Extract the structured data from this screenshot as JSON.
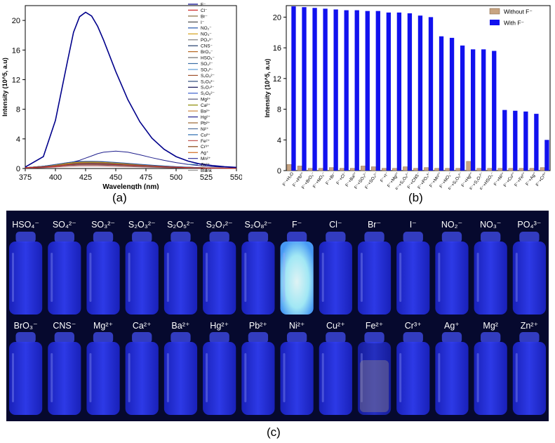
{
  "captions": {
    "a": "(a)",
    "b": "(b)",
    "c": "(c)"
  },
  "colors": {
    "with_f": "#1111ee",
    "without_f": "#c8a482",
    "spectrum_main": "#00008b",
    "photo_bg": "#06092e",
    "vial_glow": "#2f3cf0"
  },
  "chart_data": [
    {
      "type": "line",
      "panel": "a",
      "xlabel": "Wavelength (nm)",
      "ylabel": "Intensity (10^5, a.u)",
      "xlim": [
        375,
        550
      ],
      "ylim": [
        0,
        22
      ],
      "xticks": [
        "375",
        "400",
        "425",
        "450",
        "475",
        "500",
        "525",
        "550"
      ],
      "yticks": [
        "0",
        "4",
        "8",
        "12",
        "16",
        "20"
      ],
      "legend_position": "top-right",
      "x": [
        375,
        390,
        400,
        410,
        415,
        420,
        425,
        430,
        435,
        440,
        450,
        460,
        470,
        480,
        490,
        500,
        510,
        520,
        530,
        540,
        550
      ],
      "series": [
        {
          "name": "F⁻",
          "color": "#00008b",
          "values": [
            0.2,
            1.6,
            6.5,
            14.5,
            18.4,
            20.5,
            21.1,
            20.6,
            19.2,
            17.3,
            13.1,
            9.3,
            6.3,
            4.1,
            2.6,
            1.6,
            1.0,
            0.6,
            0.4,
            0.25,
            0.15
          ]
        },
        {
          "name": "Cl⁻",
          "color": "#cc2222",
          "values": [
            0.1,
            0.2,
            0.3,
            0.5,
            0.55,
            0.6,
            0.6,
            0.6,
            0.6,
            0.58,
            0.52,
            0.45,
            0.38,
            0.3,
            0.22,
            0.16,
            0.12,
            0.08,
            0.06,
            0.04,
            0.03
          ]
        },
        {
          "name": "Br⁻",
          "color": "#8a6d3b",
          "values": [
            0.1,
            0.25,
            0.4,
            0.6,
            0.68,
            0.72,
            0.75,
            0.76,
            0.75,
            0.72,
            0.65,
            0.55,
            0.45,
            0.35,
            0.26,
            0.19,
            0.13,
            0.09,
            0.06,
            0.04,
            0.03
          ]
        },
        {
          "name": "I⁻",
          "color": "#4a4a4a",
          "values": [
            0.1,
            0.2,
            0.35,
            0.5,
            0.55,
            0.6,
            0.62,
            0.62,
            0.6,
            0.58,
            0.52,
            0.45,
            0.37,
            0.29,
            0.21,
            0.15,
            0.11,
            0.08,
            0.05,
            0.04,
            0.03
          ]
        },
        {
          "name": "NO₂⁻",
          "color": "#2255aa",
          "values": [
            0.1,
            0.3,
            0.55,
            0.8,
            0.9,
            0.95,
            0.98,
            0.98,
            0.96,
            0.92,
            0.82,
            0.7,
            0.57,
            0.45,
            0.34,
            0.25,
            0.18,
            0.12,
            0.08,
            0.05,
            0.04
          ]
        },
        {
          "name": "NO₃⁻",
          "color": "#d4a017",
          "values": [
            0.1,
            0.3,
            0.5,
            0.7,
            0.78,
            0.82,
            0.85,
            0.86,
            0.85,
            0.82,
            0.74,
            0.63,
            0.51,
            0.4,
            0.3,
            0.22,
            0.16,
            0.11,
            0.07,
            0.05,
            0.03
          ]
        },
        {
          "name": "PO₄³⁻",
          "color": "#7f7f7f",
          "values": [
            0.1,
            0.2,
            0.3,
            0.4,
            0.44,
            0.47,
            0.48,
            0.48,
            0.47,
            0.45,
            0.4,
            0.34,
            0.28,
            0.22,
            0.16,
            0.12,
            0.09,
            0.06,
            0.04,
            0.03,
            0.02
          ]
        },
        {
          "name": "CNS⁻",
          "color": "#1f3b6b",
          "values": [
            0.1,
            0.2,
            0.35,
            0.5,
            0.56,
            0.6,
            0.62,
            0.63,
            0.62,
            0.6,
            0.54,
            0.46,
            0.38,
            0.3,
            0.22,
            0.16,
            0.12,
            0.08,
            0.05,
            0.04,
            0.03
          ]
        },
        {
          "name": "BrO₃⁻",
          "color": "#b5651d",
          "values": [
            0.1,
            0.25,
            0.45,
            0.65,
            0.72,
            0.78,
            0.8,
            0.8,
            0.79,
            0.76,
            0.68,
            0.58,
            0.47,
            0.37,
            0.28,
            0.2,
            0.14,
            0.1,
            0.07,
            0.05,
            0.03
          ]
        },
        {
          "name": "HSO₄⁻",
          "color": "#6b6b6b",
          "values": [
            0.1,
            0.2,
            0.3,
            0.42,
            0.46,
            0.5,
            0.52,
            0.52,
            0.51,
            0.49,
            0.44,
            0.37,
            0.3,
            0.24,
            0.18,
            0.13,
            0.09,
            0.06,
            0.04,
            0.03,
            0.02
          ]
        },
        {
          "name": "SO₃²⁻",
          "color": "#3a6ea5",
          "values": [
            0.1,
            0.25,
            0.4,
            0.6,
            0.66,
            0.7,
            0.72,
            0.72,
            0.71,
            0.68,
            0.61,
            0.52,
            0.42,
            0.33,
            0.25,
            0.18,
            0.13,
            0.09,
            0.06,
            0.04,
            0.03
          ]
        },
        {
          "name": "SO₄²⁻",
          "color": "#5b9bd5",
          "values": [
            0.1,
            0.2,
            0.35,
            0.5,
            0.55,
            0.58,
            0.6,
            0.6,
            0.59,
            0.57,
            0.51,
            0.43,
            0.35,
            0.28,
            0.21,
            0.15,
            0.11,
            0.07,
            0.05,
            0.03,
            0.02
          ]
        },
        {
          "name": "S₂O₃²⁻",
          "color": "#a0522d",
          "values": [
            0.1,
            0.28,
            0.48,
            0.68,
            0.76,
            0.82,
            0.84,
            0.84,
            0.83,
            0.8,
            0.71,
            0.6,
            0.49,
            0.38,
            0.29,
            0.21,
            0.15,
            0.1,
            0.07,
            0.05,
            0.03
          ]
        },
        {
          "name": "S₂O₅²⁻",
          "color": "#2e4a7d",
          "values": [
            0.1,
            0.22,
            0.38,
            0.55,
            0.6,
            0.64,
            0.66,
            0.66,
            0.65,
            0.63,
            0.56,
            0.48,
            0.39,
            0.31,
            0.23,
            0.17,
            0.12,
            0.08,
            0.05,
            0.04,
            0.03
          ]
        },
        {
          "name": "S₂O₇²⁻",
          "color": "#111155",
          "values": [
            0.1,
            0.3,
            0.5,
            0.72,
            0.8,
            0.85,
            0.88,
            0.88,
            0.87,
            0.84,
            0.75,
            0.64,
            0.52,
            0.41,
            0.31,
            0.23,
            0.16,
            0.11,
            0.07,
            0.05,
            0.03
          ]
        },
        {
          "name": "S₂O₈²⁻",
          "color": "#3a5fcd",
          "values": [
            0.1,
            0.2,
            0.33,
            0.47,
            0.52,
            0.55,
            0.57,
            0.57,
            0.56,
            0.54,
            0.48,
            0.41,
            0.33,
            0.26,
            0.2,
            0.14,
            0.1,
            0.07,
            0.05,
            0.03,
            0.02
          ]
        },
        {
          "name": "Mg²⁺",
          "color": "#555577",
          "values": [
            0.1,
            0.25,
            0.42,
            0.6,
            0.66,
            0.7,
            0.72,
            0.73,
            0.72,
            0.69,
            0.62,
            0.53,
            0.43,
            0.34,
            0.25,
            0.18,
            0.13,
            0.09,
            0.06,
            0.04,
            0.03
          ]
        },
        {
          "name": "Ca²⁺",
          "color": "#8b8b00",
          "values": [
            0.1,
            0.2,
            0.35,
            0.5,
            0.55,
            0.58,
            0.6,
            0.6,
            0.59,
            0.57,
            0.51,
            0.43,
            0.35,
            0.28,
            0.21,
            0.15,
            0.11,
            0.07,
            0.05,
            0.03,
            0.02
          ]
        },
        {
          "name": "Ba²⁺",
          "color": "#cd853f",
          "values": [
            0.1,
            0.3,
            0.55,
            0.78,
            0.86,
            0.92,
            0.95,
            0.95,
            0.94,
            0.9,
            0.8,
            0.68,
            0.55,
            0.43,
            0.33,
            0.24,
            0.17,
            0.12,
            0.08,
            0.05,
            0.04
          ]
        },
        {
          "name": "Hg²⁺",
          "color": "#1e1e8c",
          "values": [
            0.1,
            0.3,
            0.5,
            0.75,
            0.9,
            1.1,
            1.4,
            1.7,
            2.0,
            2.2,
            2.35,
            2.2,
            1.85,
            1.45,
            1.1,
            0.8,
            0.55,
            0.38,
            0.26,
            0.18,
            0.12
          ]
        },
        {
          "name": "Pb²⁺",
          "color": "#996633",
          "values": [
            0.1,
            0.22,
            0.4,
            0.58,
            0.64,
            0.68,
            0.7,
            0.7,
            0.69,
            0.66,
            0.59,
            0.5,
            0.41,
            0.32,
            0.24,
            0.17,
            0.12,
            0.08,
            0.06,
            0.04,
            0.03
          ]
        },
        {
          "name": "Ni²⁺",
          "color": "#4f6d9a",
          "values": [
            0.1,
            0.2,
            0.32,
            0.45,
            0.5,
            0.53,
            0.55,
            0.55,
            0.54,
            0.52,
            0.46,
            0.39,
            0.32,
            0.25,
            0.19,
            0.14,
            0.1,
            0.07,
            0.05,
            0.03,
            0.02
          ]
        },
        {
          "name": "Cu²⁺",
          "color": "#2b6cb0",
          "values": [
            0.1,
            0.18,
            0.3,
            0.42,
            0.46,
            0.49,
            0.5,
            0.5,
            0.49,
            0.47,
            0.42,
            0.36,
            0.29,
            0.23,
            0.17,
            0.12,
            0.09,
            0.06,
            0.04,
            0.03,
            0.02
          ]
        },
        {
          "name": "Fe²⁺",
          "color": "#c0504d",
          "values": [
            0.05,
            0.12,
            0.2,
            0.3,
            0.33,
            0.35,
            0.36,
            0.36,
            0.35,
            0.34,
            0.3,
            0.26,
            0.21,
            0.16,
            0.12,
            0.09,
            0.06,
            0.04,
            0.03,
            0.02,
            0.01
          ]
        },
        {
          "name": "Cr³⁺",
          "color": "#8b4513",
          "values": [
            0.1,
            0.25,
            0.45,
            0.64,
            0.71,
            0.76,
            0.78,
            0.78,
            0.77,
            0.74,
            0.66,
            0.56,
            0.46,
            0.36,
            0.27,
            0.19,
            0.14,
            0.09,
            0.06,
            0.04,
            0.03
          ]
        },
        {
          "name": "Ag⁺",
          "color": "#d2691e",
          "values": [
            0.1,
            0.28,
            0.5,
            0.7,
            0.78,
            0.83,
            0.86,
            0.86,
            0.85,
            0.82,
            0.73,
            0.62,
            0.5,
            0.39,
            0.3,
            0.22,
            0.15,
            0.1,
            0.07,
            0.05,
            0.03
          ]
        },
        {
          "name": "Mn²⁺",
          "color": "#333399",
          "values": [
            0.1,
            0.22,
            0.37,
            0.53,
            0.58,
            0.62,
            0.64,
            0.64,
            0.63,
            0.61,
            0.54,
            0.46,
            0.38,
            0.3,
            0.22,
            0.16,
            0.11,
            0.08,
            0.05,
            0.04,
            0.03
          ]
        },
        {
          "name": "Zn²⁺",
          "color": "#4682b4",
          "values": [
            0.1,
            0.2,
            0.33,
            0.48,
            0.53,
            0.56,
            0.58,
            0.58,
            0.57,
            0.55,
            0.49,
            0.42,
            0.34,
            0.27,
            0.2,
            0.14,
            0.1,
            0.07,
            0.05,
            0.03,
            0.02
          ]
        },
        {
          "name": "Blank",
          "color": "#999999",
          "values": [
            0.1,
            0.18,
            0.28,
            0.4,
            0.44,
            0.47,
            0.48,
            0.48,
            0.47,
            0.45,
            0.4,
            0.34,
            0.28,
            0.22,
            0.16,
            0.12,
            0.08,
            0.06,
            0.04,
            0.03,
            0.02
          ]
        }
      ],
      "legend": [
        "F⁻",
        "Cl⁻",
        "Br⁻",
        "I⁻",
        "NO₂⁻",
        "NO₃⁻",
        "PO₄³⁻",
        "CNS⁻",
        "BrO₃⁻",
        "HSO₄⁻",
        "SO₃²⁻",
        "SO₄²⁻",
        "S₂O₃²⁻",
        "S₂O₅²⁻",
        "S₂O₇²⁻",
        "S₂O₈²⁻",
        "Mg²⁺",
        "Ca²⁺",
        "Ba²⁺",
        "Hg²⁺",
        "Pb²⁺",
        "Ni²⁺",
        "Cu²⁺",
        "Fe²⁺",
        "Cr³⁺",
        "Ag⁺",
        "Mn²⁺",
        "Zn²⁺",
        "Blank"
      ]
    },
    {
      "type": "bar",
      "panel": "b",
      "xlabel": "",
      "ylabel": "Intensity (10^5, a.u)",
      "ylim": [
        0,
        21.5
      ],
      "yticks": [
        "0",
        "4",
        "8",
        "12",
        "16",
        "20"
      ],
      "legend_position": "top-right",
      "categories": [
        "F⁻+H₂O",
        "F⁻+Pb²⁺",
        "F⁻+BrO₃⁻",
        "F⁻+NO₃⁻",
        "F⁻+Br⁻",
        "F⁻+Cl⁻",
        "F⁻+Ba²⁺",
        "F⁻+SO₃²⁻",
        "F⁻+SO₄²⁻",
        "F⁻+I⁻",
        "F⁻+Mg²⁺",
        "F⁻+S₂O₈²⁻",
        "F⁻+CNS⁻",
        "F⁻+PO₄³⁻",
        "F⁻+Mn²⁺",
        "F⁻+NO₂⁻",
        "F⁻+S₂O₅²⁻",
        "F⁻+Hg²⁺",
        "F⁻+S₂O₇²⁻",
        "F⁻+HSO₄⁻",
        "F⁻+Ni²⁺",
        "F⁻+Cu²⁺",
        "F⁻+Fe²⁺",
        "F⁻+Ag⁺",
        "F⁻+Cr³⁺"
      ],
      "series": [
        {
          "name": "Without F⁻",
          "color": "#c8a482",
          "values": [
            0.8,
            0.6,
            0.3,
            0.3,
            0.4,
            0.3,
            0.3,
            0.6,
            0.5,
            0.3,
            0.3,
            0.5,
            0.3,
            0.4,
            0.3,
            0.3,
            0.3,
            1.2,
            0.3,
            0.3,
            0.3,
            0.3,
            0.3,
            0.3,
            0.4
          ]
        },
        {
          "name": "With F⁻",
          "color": "#1111ee",
          "values": [
            21.4,
            21.3,
            21.2,
            21.1,
            21.0,
            20.9,
            20.9,
            20.8,
            20.8,
            20.6,
            20.6,
            20.5,
            20.2,
            20.0,
            17.5,
            17.3,
            16.3,
            15.8,
            15.8,
            15.6,
            7.9,
            7.8,
            7.7,
            7.4,
            4.0
          ]
        }
      ]
    }
  ],
  "photo": {
    "row1": [
      "HSO₄⁻",
      "SO₄²⁻",
      "SO₃²⁻",
      "S₂O₃²⁻",
      "S₂O₅²⁻",
      "S₂O₇²⁻",
      "S₂O₈²⁻",
      "F⁻",
      "Cl⁻",
      "Br⁻",
      "I⁻",
      "NO₂⁻",
      "NO₃⁻",
      "PO₄³⁻"
    ],
    "row2": [
      "BrO₃⁻",
      "CNS⁻",
      "Mg²⁺",
      "Ca²⁺",
      "Ba²⁺",
      "Hg²⁺",
      "Pb²⁺",
      "Ni²⁺",
      "Cu²⁺",
      "Fe²⁺",
      "Cr³⁺",
      "Ag⁺",
      "Mg²",
      "Zn²⁺"
    ],
    "highlight_row1_index": 7,
    "dim_row2_index": 9
  }
}
